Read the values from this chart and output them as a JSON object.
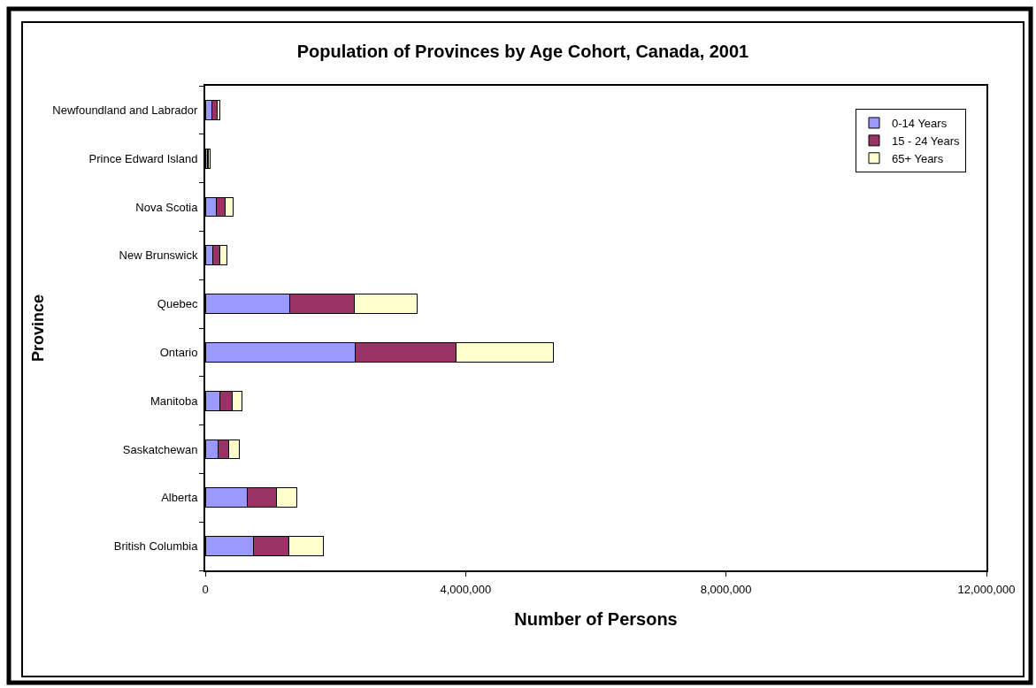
{
  "chart_data": {
    "type": "bar",
    "title": "Population of Provinces by Age Cohort, Canada, 2001",
    "xlabel": "Number of Persons",
    "ylabel": "Province",
    "orientation": "horizontal",
    "stacked": true,
    "categories": [
      "Newfoundland and Labrador",
      "Prince Edward Island",
      "Nova Scotia",
      "New Brunswick",
      "Quebec",
      "Ontario",
      "Manitoba",
      "Saskatchewan",
      "Alberta",
      "British Columbia"
    ],
    "series": [
      {
        "name": "0-14 Years",
        "color": "#9999ff",
        "values": [
          100000,
          30000,
          170000,
          120000,
          1300000,
          2300000,
          230000,
          200000,
          640000,
          740000
        ]
      },
      {
        "name": "15 - 24 Years",
        "color": "#993366",
        "values": [
          80000,
          20000,
          130000,
          100000,
          990000,
          1550000,
          180000,
          160000,
          460000,
          540000
        ]
      },
      {
        "name": "65+ Years",
        "color": "#ffffcc",
        "values": [
          50000,
          20000,
          130000,
          110000,
          970000,
          1500000,
          160000,
          160000,
          310000,
          540000
        ]
      }
    ],
    "xlim": [
      0,
      12000000
    ],
    "xticks": [
      0,
      {
        "value": 4000000,
        "label": "4,000,000"
      },
      {
        "value": 8000000,
        "label": "8,000,000"
      },
      {
        "value": 12000000,
        "label": "12,000,000"
      }
    ],
    "legend": "top right"
  }
}
